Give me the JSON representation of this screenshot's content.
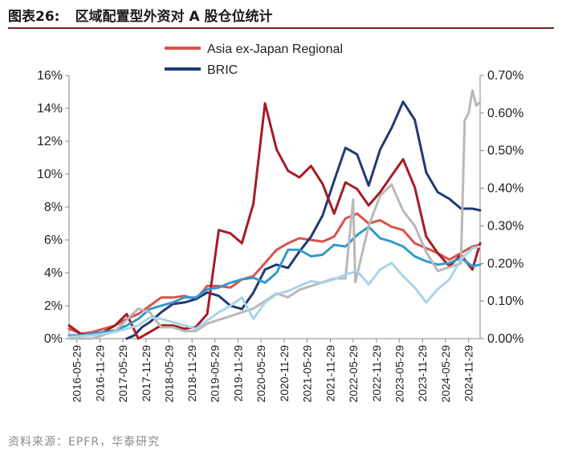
{
  "figure": {
    "label": "图表26:",
    "title": "区域配置型外资对 A 股仓位统计",
    "source": "资料来源：EPFR，华泰研究"
  },
  "chart_data": {
    "type": "line",
    "title": "区域配置型外资对 A 股仓位统计",
    "x_tick_labels": [
      "2016-05-29",
      "2016-11-29",
      "2017-05-29",
      "2017-11-29",
      "2018-05-29",
      "2018-11-29",
      "2019-05-29",
      "2019-11-29",
      "2020-05-29",
      "2020-11-29",
      "2021-05-29",
      "2021-11-29",
      "2022-05-29",
      "2022-11-29",
      "2023-05-29",
      "2023-11-29",
      "2024-05-29",
      "2024-11-29"
    ],
    "x_range": [
      "2016-03-29",
      "2025-02-28"
    ],
    "y_left": {
      "min": 0,
      "max": 16,
      "ticks": [
        0,
        2,
        4,
        6,
        8,
        10,
        12,
        14,
        16
      ],
      "format": "percent0"
    },
    "y_right": {
      "min": 0,
      "max": 0.7,
      "ticks": [
        0,
        0.1,
        0.2,
        0.3,
        0.4,
        0.5,
        0.6,
        0.7
      ],
      "format": "percent2"
    },
    "legend": {
      "position": "top-center"
    },
    "series": [
      {
        "name": "Asia ex-Japan Regional",
        "axis": "left",
        "color": "#d9534f",
        "points": [
          [
            "2016-03-29",
            0.6
          ],
          [
            "2016-06-29",
            0.3
          ],
          [
            "2016-09-29",
            0.4
          ],
          [
            "2016-12-29",
            0.6
          ],
          [
            "2017-03-29",
            0.8
          ],
          [
            "2017-06-29",
            1.2
          ],
          [
            "2017-09-29",
            1.5
          ],
          [
            "2017-12-29",
            2.0
          ],
          [
            "2018-03-29",
            2.5
          ],
          [
            "2018-06-29",
            2.5
          ],
          [
            "2018-09-29",
            2.6
          ],
          [
            "2018-12-29",
            2.4
          ],
          [
            "2019-03-29",
            3.2
          ],
          [
            "2019-06-29",
            3.2
          ],
          [
            "2019-09-29",
            3.1
          ],
          [
            "2019-12-29",
            3.6
          ],
          [
            "2020-03-29",
            3.8
          ],
          [
            "2020-06-29",
            4.6
          ],
          [
            "2020-09-29",
            5.4
          ],
          [
            "2020-12-29",
            5.8
          ],
          [
            "2021-03-29",
            6.1
          ],
          [
            "2021-06-29",
            6.0
          ],
          [
            "2021-09-29",
            5.9
          ],
          [
            "2021-12-29",
            6.2
          ],
          [
            "2022-03-29",
            7.3
          ],
          [
            "2022-06-29",
            7.6
          ],
          [
            "2022-09-29",
            7.0
          ],
          [
            "2022-12-29",
            7.2
          ],
          [
            "2023-03-29",
            6.8
          ],
          [
            "2023-06-29",
            6.6
          ],
          [
            "2023-09-29",
            5.8
          ],
          [
            "2023-12-29",
            5.5
          ],
          [
            "2024-03-29",
            5.2
          ],
          [
            "2024-06-29",
            4.8
          ],
          [
            "2024-09-29",
            5.2
          ],
          [
            "2024-12-29",
            5.6
          ],
          [
            "2025-02-28",
            5.7
          ]
        ]
      },
      {
        "name": "BRIC",
        "axis": "left",
        "color": "#1f3b73",
        "points": [
          [
            "2017-06-29",
            0.0
          ],
          [
            "2017-08-29",
            0.2
          ],
          [
            "2017-10-29",
            0.7
          ],
          [
            "2017-12-29",
            1.0
          ],
          [
            "2018-03-29",
            1.6
          ],
          [
            "2018-06-29",
            2.1
          ],
          [
            "2018-09-29",
            2.2
          ],
          [
            "2018-12-29",
            2.4
          ],
          [
            "2019-03-29",
            2.8
          ],
          [
            "2019-06-29",
            2.6
          ],
          [
            "2019-09-29",
            2.0
          ],
          [
            "2019-12-29",
            1.8
          ],
          [
            "2020-03-29",
            2.8
          ],
          [
            "2020-06-29",
            4.2
          ],
          [
            "2020-09-29",
            4.5
          ],
          [
            "2020-12-29",
            4.3
          ],
          [
            "2021-03-29",
            5.3
          ],
          [
            "2021-06-29",
            6.2
          ],
          [
            "2021-09-29",
            7.5
          ],
          [
            "2021-12-29",
            9.6
          ],
          [
            "2022-03-29",
            11.6
          ],
          [
            "2022-06-29",
            11.2
          ],
          [
            "2022-09-29",
            9.3
          ],
          [
            "2022-12-29",
            11.5
          ],
          [
            "2023-03-29",
            12.8
          ],
          [
            "2023-06-29",
            14.4
          ],
          [
            "2023-09-29",
            13.3
          ],
          [
            "2023-12-29",
            10.1
          ],
          [
            "2024-03-29",
            8.9
          ],
          [
            "2024-06-29",
            8.5
          ],
          [
            "2024-09-29",
            7.9
          ],
          [
            "2024-12-29",
            7.9
          ],
          [
            "2025-02-28",
            7.8
          ]
        ]
      },
      {
        "name": "",
        "axis": "left",
        "color": "#a51c24",
        "points": [
          [
            "2016-03-29",
            0.8
          ],
          [
            "2016-06-29",
            0.3
          ],
          [
            "2016-09-29",
            0.2
          ],
          [
            "2016-12-29",
            0.4
          ],
          [
            "2017-03-29",
            0.8
          ],
          [
            "2017-06-29",
            1.5
          ],
          [
            "2017-09-29",
            0.0
          ],
          [
            "2017-12-29",
            0.4
          ],
          [
            "2018-03-29",
            0.8
          ],
          [
            "2018-06-29",
            0.8
          ],
          [
            "2018-09-29",
            0.6
          ],
          [
            "2018-12-29",
            0.7
          ],
          [
            "2019-03-29",
            1.5
          ],
          [
            "2019-06-29",
            6.6
          ],
          [
            "2019-09-29",
            6.4
          ],
          [
            "2019-12-29",
            5.8
          ],
          [
            "2020-03-29",
            8.2
          ],
          [
            "2020-06-29",
            14.3
          ],
          [
            "2020-09-29",
            11.5
          ],
          [
            "2020-12-29",
            10.2
          ],
          [
            "2021-03-29",
            9.8
          ],
          [
            "2021-06-29",
            10.5
          ],
          [
            "2021-09-29",
            9.4
          ],
          [
            "2021-12-29",
            7.6
          ],
          [
            "2022-03-29",
            9.5
          ],
          [
            "2022-06-29",
            9.1
          ],
          [
            "2022-09-29",
            8.1
          ],
          [
            "2022-12-29",
            8.9
          ],
          [
            "2023-03-29",
            9.9
          ],
          [
            "2023-06-29",
            10.9
          ],
          [
            "2023-09-29",
            9.2
          ],
          [
            "2023-12-29",
            6.2
          ],
          [
            "2024-03-29",
            5.2
          ],
          [
            "2024-06-29",
            4.4
          ],
          [
            "2024-09-29",
            5.1
          ],
          [
            "2024-12-29",
            4.2
          ],
          [
            "2025-02-28",
            5.8
          ]
        ]
      },
      {
        "name": "",
        "axis": "left",
        "color": "#3399cc",
        "points": [
          [
            "2016-03-29",
            0.2
          ],
          [
            "2016-06-29",
            0.2
          ],
          [
            "2016-09-29",
            0.3
          ],
          [
            "2016-12-29",
            0.4
          ],
          [
            "2017-03-29",
            0.5
          ],
          [
            "2017-06-29",
            0.8
          ],
          [
            "2017-09-29",
            1.2
          ],
          [
            "2017-12-29",
            1.8
          ],
          [
            "2018-03-29",
            2.0
          ],
          [
            "2018-06-29",
            2.2
          ],
          [
            "2018-09-29",
            2.5
          ],
          [
            "2018-12-29",
            2.5
          ],
          [
            "2019-03-29",
            3.0
          ],
          [
            "2019-06-29",
            3.1
          ],
          [
            "2019-09-29",
            3.4
          ],
          [
            "2019-12-29",
            3.6
          ],
          [
            "2020-03-29",
            3.7
          ],
          [
            "2020-06-29",
            3.4
          ],
          [
            "2020-09-29",
            4.0
          ],
          [
            "2020-12-29",
            5.4
          ],
          [
            "2021-03-29",
            5.4
          ],
          [
            "2021-06-29",
            5.0
          ],
          [
            "2021-09-29",
            5.1
          ],
          [
            "2021-12-29",
            5.7
          ],
          [
            "2022-03-29",
            5.6
          ],
          [
            "2022-06-29",
            6.3
          ],
          [
            "2022-09-29",
            6.8
          ],
          [
            "2022-12-29",
            6.1
          ],
          [
            "2023-03-29",
            5.9
          ],
          [
            "2023-06-29",
            5.6
          ],
          [
            "2023-09-29",
            5.0
          ],
          [
            "2023-12-29",
            4.7
          ],
          [
            "2024-03-29",
            4.5
          ],
          [
            "2024-06-29",
            4.6
          ],
          [
            "2024-09-29",
            4.9
          ],
          [
            "2024-12-29",
            4.4
          ],
          [
            "2025-02-28",
            4.5
          ]
        ]
      },
      {
        "name": "",
        "axis": "right",
        "color": "#b8b8b8",
        "points": [
          [
            "2016-03-29",
            0.0
          ],
          [
            "2016-09-29",
            0.0
          ],
          [
            "2017-03-29",
            0.02
          ],
          [
            "2017-09-29",
            0.08
          ],
          [
            "2017-12-29",
            0.07
          ],
          [
            "2018-03-29",
            0.03
          ],
          [
            "2018-06-29",
            0.03
          ],
          [
            "2018-09-29",
            0.02
          ],
          [
            "2018-12-29",
            0.02
          ],
          [
            "2019-03-29",
            0.04
          ],
          [
            "2019-06-29",
            0.05
          ],
          [
            "2019-09-29",
            0.06
          ],
          [
            "2019-12-29",
            0.07
          ],
          [
            "2020-03-29",
            0.08
          ],
          [
            "2020-06-29",
            0.1
          ],
          [
            "2020-09-29",
            0.12
          ],
          [
            "2020-12-29",
            0.11
          ],
          [
            "2021-03-29",
            0.13
          ],
          [
            "2021-06-29",
            0.14
          ],
          [
            "2021-09-29",
            0.15
          ],
          [
            "2021-12-29",
            0.16
          ],
          [
            "2022-03-29",
            0.16
          ],
          [
            "2022-05-29",
            0.37
          ],
          [
            "2022-06-15",
            0.15
          ],
          [
            "2022-09-29",
            0.3
          ],
          [
            "2022-12-29",
            0.38
          ],
          [
            "2023-03-29",
            0.41
          ],
          [
            "2023-06-29",
            0.34
          ],
          [
            "2023-09-29",
            0.3
          ],
          [
            "2023-12-29",
            0.23
          ],
          [
            "2024-03-29",
            0.18
          ],
          [
            "2024-06-29",
            0.19
          ],
          [
            "2024-09-29",
            0.2
          ],
          [
            "2024-10-29",
            0.58
          ],
          [
            "2024-11-29",
            0.6
          ],
          [
            "2024-12-29",
            0.66
          ],
          [
            "2025-01-29",
            0.62
          ],
          [
            "2025-02-28",
            0.63
          ]
        ]
      },
      {
        "name": "",
        "axis": "left",
        "color": "#a8d4e8",
        "points": [
          [
            "2016-03-29",
            0.1
          ],
          [
            "2016-09-29",
            0.2
          ],
          [
            "2017-03-29",
            0.4
          ],
          [
            "2017-09-29",
            0.8
          ],
          [
            "2017-12-29",
            1.3
          ],
          [
            "2018-03-29",
            1.2
          ],
          [
            "2018-06-29",
            1.0
          ],
          [
            "2018-09-29",
            0.8
          ],
          [
            "2018-12-29",
            0.6
          ],
          [
            "2019-03-29",
            1.1
          ],
          [
            "2019-06-29",
            1.6
          ],
          [
            "2019-09-29",
            2.0
          ],
          [
            "2019-12-29",
            2.5
          ],
          [
            "2020-03-29",
            1.2
          ],
          [
            "2020-06-29",
            2.2
          ],
          [
            "2020-09-29",
            2.7
          ],
          [
            "2020-12-29",
            2.9
          ],
          [
            "2021-03-29",
            3.2
          ],
          [
            "2021-06-29",
            3.5
          ],
          [
            "2021-09-29",
            3.4
          ],
          [
            "2021-12-29",
            3.6
          ],
          [
            "2022-03-29",
            3.9
          ],
          [
            "2022-06-29",
            4.1
          ],
          [
            "2022-09-29",
            3.3
          ],
          [
            "2022-12-29",
            4.2
          ],
          [
            "2023-03-29",
            4.6
          ],
          [
            "2023-06-29",
            3.8
          ],
          [
            "2023-09-29",
            3.1
          ],
          [
            "2023-12-29",
            2.2
          ],
          [
            "2024-03-29",
            3.0
          ],
          [
            "2024-06-29",
            3.6
          ],
          [
            "2024-09-29",
            4.8
          ],
          [
            "2024-12-29",
            5.5
          ],
          [
            "2025-02-28",
            5.6
          ]
        ]
      }
    ]
  }
}
